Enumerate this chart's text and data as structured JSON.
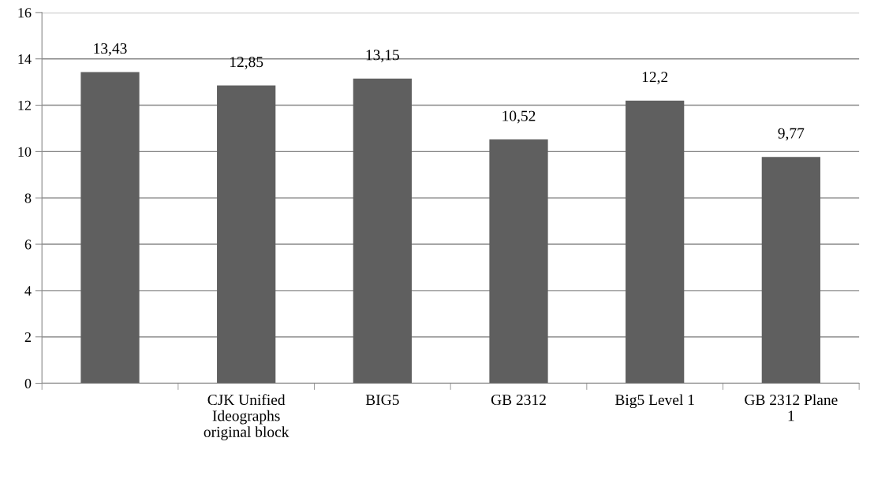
{
  "chart_data": {
    "type": "bar",
    "categories": [
      null,
      "CJK Unified Ideographs original block",
      "BIG5",
      "GB 2312",
      "Big5 Level 1",
      "GB 2312 Plane 1"
    ],
    "values": [
      13.43,
      12.85,
      13.15,
      10.52,
      12.2,
      9.77
    ],
    "value_labels": [
      "13,43",
      "12,85",
      "13,15",
      "10,52",
      "12,2",
      "9,77"
    ],
    "color": "#5f5f5f",
    "ylim": [
      0,
      16
    ],
    "yticks": [
      0,
      2,
      4,
      6,
      8,
      10,
      12,
      14,
      16
    ],
    "grid": "y",
    "legend": false
  }
}
